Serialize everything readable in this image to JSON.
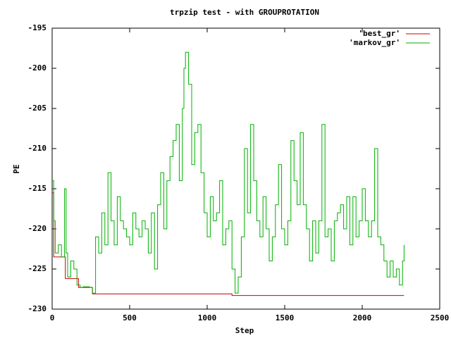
{
  "chart_data": {
    "type": "line",
    "title": "trpzip test - with GROUPROTATION",
    "xlabel": "Step",
    "ylabel": "PE",
    "xlim": [
      0,
      2500
    ],
    "xticks": [
      0,
      500,
      1000,
      1500,
      2000,
      2500
    ],
    "ylim": [
      -230,
      -195
    ],
    "yticks": [
      -230,
      -225,
      -220,
      -215,
      -210,
      -205,
      -200,
      -195
    ],
    "steps": true,
    "legend": "top-right",
    "series": [
      {
        "name": "'best_gr'",
        "color": "#cc0000",
        "x": [
          0,
          10,
          85,
          170,
          260,
          1160,
          2270
        ],
        "values": [
          -215.5,
          -223.5,
          -226.2,
          -227.3,
          -228.1,
          -228.3,
          -228.3
        ]
      },
      {
        "name": "'markov_gr'",
        "color": "#00b000",
        "x": [
          0,
          10,
          20,
          40,
          60,
          80,
          90,
          100,
          120,
          140,
          160,
          180,
          200,
          240,
          260,
          280,
          300,
          320,
          340,
          360,
          380,
          400,
          420,
          440,
          460,
          480,
          500,
          520,
          540,
          560,
          580,
          600,
          620,
          640,
          660,
          680,
          700,
          720,
          740,
          760,
          780,
          800,
          820,
          840,
          850,
          860,
          880,
          900,
          920,
          940,
          960,
          980,
          1000,
          1020,
          1040,
          1060,
          1080,
          1100,
          1120,
          1140,
          1160,
          1180,
          1200,
          1220,
          1240,
          1260,
          1280,
          1300,
          1320,
          1340,
          1360,
          1380,
          1400,
          1420,
          1440,
          1460,
          1480,
          1500,
          1520,
          1540,
          1560,
          1580,
          1600,
          1620,
          1640,
          1660,
          1680,
          1700,
          1720,
          1740,
          1760,
          1780,
          1800,
          1820,
          1840,
          1860,
          1880,
          1900,
          1920,
          1940,
          1960,
          1980,
          2000,
          2020,
          2040,
          2060,
          2080,
          2100,
          2120,
          2140,
          2160,
          2180,
          2200,
          2220,
          2240,
          2260,
          2270
        ],
        "values": [
          -214,
          -219,
          -223,
          -222,
          -223.5,
          -215,
          -223,
          -226,
          -224,
          -225,
          -227,
          -227.3,
          -227.2,
          -227.3,
          -228,
          -221,
          -223,
          -218,
          -222,
          -213,
          -219,
          -222,
          -216,
          -219,
          -220,
          -221,
          -222,
          -218,
          -220,
          -221,
          -219,
          -220,
          -223,
          -218,
          -225,
          -217,
          -213,
          -220,
          -214,
          -211,
          -209,
          -207,
          -214,
          -205,
          -200,
          -198,
          -202,
          -212,
          -208,
          -207,
          -213,
          -218,
          -221,
          -216,
          -219,
          -218,
          -214,
          -222,
          -220,
          -219,
          -225,
          -228,
          -226,
          -221,
          -210,
          -218,
          -207,
          -214,
          -219,
          -221,
          -216,
          -220,
          -224,
          -221,
          -217,
          -212,
          -220,
          -222,
          -219,
          -209,
          -214,
          -217,
          -208,
          -217,
          -220,
          -224,
          -219,
          -223,
          -219,
          -207,
          -221,
          -220,
          -224,
          -219,
          -218,
          -217,
          -220,
          -216,
          -222,
          -216,
          -221,
          -219,
          -215,
          -219,
          -221,
          -219,
          -210,
          -221,
          -222,
          -224,
          -226,
          -224,
          -226,
          -225,
          -227,
          -224,
          -222
        ]
      }
    ]
  }
}
